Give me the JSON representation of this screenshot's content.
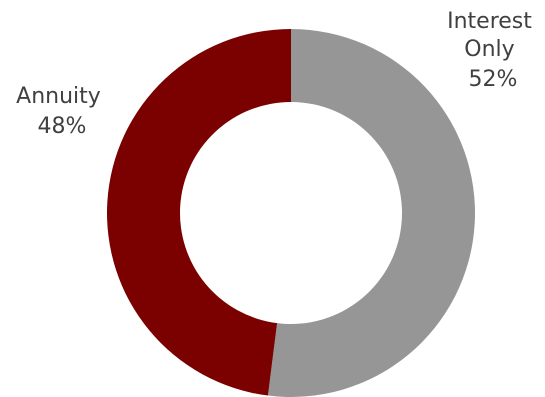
{
  "chart_data": {
    "type": "pie",
    "variant": "donut",
    "title": "",
    "categories": [
      "Interest Only",
      "Annuity"
    ],
    "values": [
      52,
      48
    ],
    "unit": "%",
    "colors": [
      "#969696",
      "#7b0000"
    ],
    "labels": [
      {
        "lines": [
          "Interest",
          "Only",
          "52%"
        ]
      },
      {
        "lines": [
          "Annuity",
          "48%"
        ]
      }
    ],
    "legend": "none"
  }
}
